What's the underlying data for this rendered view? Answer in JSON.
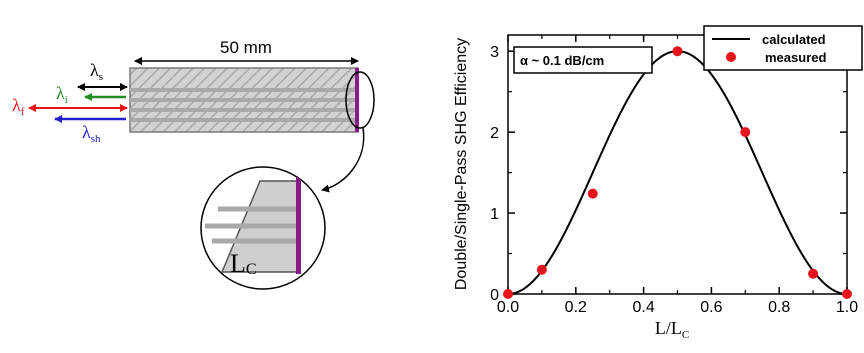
{
  "diagram": {
    "length_label": "50 mm",
    "lambda_s": {
      "sym": "λ",
      "sub": "s",
      "color": "#000000"
    },
    "lambda_i": {
      "sym": "λ",
      "sub": "i",
      "color": "#228b22"
    },
    "lambda_f": {
      "sym": "λ",
      "sub": "f",
      "color": "#e8141c"
    },
    "lambda_sh": {
      "sym": "λ",
      "sub": "sh",
      "color": "#2222cc"
    },
    "inset_label": {
      "main": "L",
      "sub": "C"
    },
    "mirror_color": "#8b1a8b"
  },
  "chart_data": {
    "type": "scatter",
    "xlim": [
      0,
      1.0
    ],
    "ylim": [
      0,
      3.2
    ],
    "x_ticks": [
      "0.0",
      "0.2",
      "0.4",
      "0.6",
      "0.8",
      "1.0"
    ],
    "x_tick_values": [
      0,
      0.2,
      0.4,
      0.6,
      0.8,
      1.0
    ],
    "y_ticks": [
      "0",
      "1",
      "2",
      "3"
    ],
    "y_tick_values": [
      0,
      1,
      2,
      3
    ],
    "xlabel": {
      "main": "L/L",
      "sub": "C"
    },
    "ylabel": "Double/Single-Pass SHG Efficiency",
    "annotation": "α ~ 0.1 dB/cm",
    "legend": {
      "position": "top-right",
      "entries": [
        "calculated",
        "measured"
      ]
    },
    "series": [
      {
        "name": "calculated",
        "kind": "line",
        "color": "#000000",
        "function": "3*sin^2(pi*x)"
      },
      {
        "name": "measured",
        "kind": "points",
        "color": "#e8141c",
        "x": [
          0.0,
          0.1,
          0.25,
          0.5,
          0.7,
          0.9,
          1.0
        ],
        "y": [
          0.0,
          0.3,
          1.24,
          3.0,
          2.0,
          0.25,
          0.0
        ]
      }
    ]
  }
}
